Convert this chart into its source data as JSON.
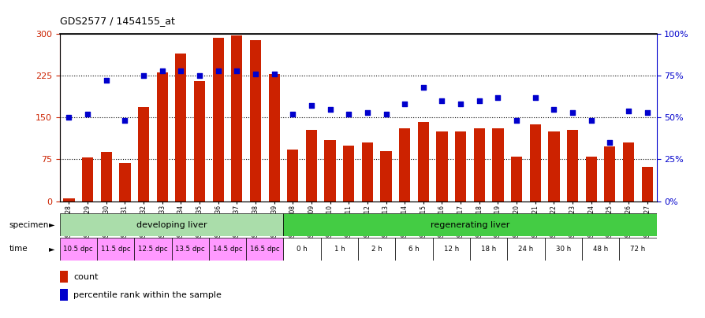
{
  "title": "GDS2577 / 1454155_at",
  "bar_color": "#cc2200",
  "dot_color": "#0000cc",
  "bar_values": [
    5,
    78,
    88,
    68,
    168,
    230,
    265,
    215,
    292,
    296,
    288,
    228,
    92,
    128,
    110,
    100,
    105,
    90,
    130,
    142,
    125,
    125,
    130,
    130,
    80,
    138,
    125,
    128,
    80,
    98,
    105,
    62
  ],
  "dot_pct": [
    50,
    52,
    72,
    48,
    75,
    78,
    78,
    75,
    78,
    78,
    76,
    76,
    52,
    57,
    55,
    52,
    53,
    52,
    58,
    68,
    60,
    58,
    60,
    62,
    48,
    62,
    55,
    53,
    48,
    35,
    54,
    53
  ],
  "sample_labels": [
    "GSM161128",
    "GSM161129",
    "GSM161130",
    "GSM161131",
    "GSM161132",
    "GSM161133",
    "GSM161134",
    "GSM161135",
    "GSM161136",
    "GSM161137",
    "GSM161138",
    "GSM161139",
    "GSM161108",
    "GSM161109",
    "GSM161110",
    "GSM161111",
    "GSM161112",
    "GSM161113",
    "GSM161114",
    "GSM161115",
    "GSM161116",
    "GSM161117",
    "GSM161118",
    "GSM161119",
    "GSM161120",
    "GSM161121",
    "GSM161122",
    "GSM161123",
    "GSM161124",
    "GSM161125",
    "GSM161126",
    "GSM161127"
  ],
  "dev_specimen_color": "#aaddaa",
  "reg_specimen_color": "#44cc44",
  "time_color_dev": "#ff99ff",
  "time_color_reg": "#ffffff",
  "ylim": [
    0,
    300
  ],
  "yticks_left": [
    0,
    75,
    150,
    225,
    300
  ],
  "yticks_right_pct": [
    0,
    25,
    50,
    75,
    100
  ],
  "legend_count": "count",
  "legend_pct": "percentile rank within the sample",
  "time_labels": [
    "10.5 dpc",
    "11.5 dpc",
    "12.5 dpc",
    "13.5 dpc",
    "14.5 dpc",
    "16.5 dpc",
    "0 h",
    "1 h",
    "2 h",
    "6 h",
    "12 h",
    "18 h",
    "24 h",
    "30 h",
    "48 h",
    "72 h"
  ]
}
